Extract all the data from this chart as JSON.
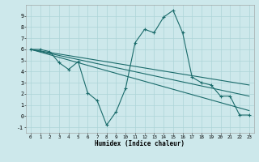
{
  "background_color": "#cde8eb",
  "grid_color": "#add4d8",
  "line_color": "#1a6b6b",
  "xlabel": "Humidex (Indice chaleur)",
  "main_series": {
    "x": [
      0,
      1,
      2,
      3,
      4,
      5,
      6,
      7,
      8,
      9,
      10,
      11,
      12,
      13,
      14,
      15,
      16,
      17,
      18,
      19,
      20,
      21,
      22,
      23
    ],
    "y": [
      6.0,
      6.0,
      5.8,
      4.8,
      4.2,
      4.9,
      2.1,
      1.4,
      -0.8,
      0.4,
      2.5,
      6.6,
      7.8,
      7.5,
      8.9,
      9.5,
      7.5,
      3.5,
      3.0,
      2.8,
      1.8,
      1.8,
      0.1,
      0.1
    ]
  },
  "line2": {
    "x": [
      0,
      23
    ],
    "y": [
      6.0,
      1.8
    ]
  },
  "line3": {
    "x": [
      0,
      23
    ],
    "y": [
      6.0,
      2.8
    ]
  },
  "line4": {
    "x": [
      0,
      23
    ],
    "y": [
      6.0,
      0.5
    ]
  },
  "xlim": [
    -0.5,
    23.5
  ],
  "ylim": [
    -1.5,
    10.0
  ],
  "xticks": [
    0,
    1,
    2,
    3,
    4,
    5,
    6,
    7,
    8,
    9,
    10,
    11,
    12,
    13,
    14,
    15,
    16,
    17,
    18,
    19,
    20,
    21,
    22,
    23
  ],
  "yticks": [
    -1,
    0,
    1,
    2,
    3,
    4,
    5,
    6,
    7,
    8,
    9
  ]
}
